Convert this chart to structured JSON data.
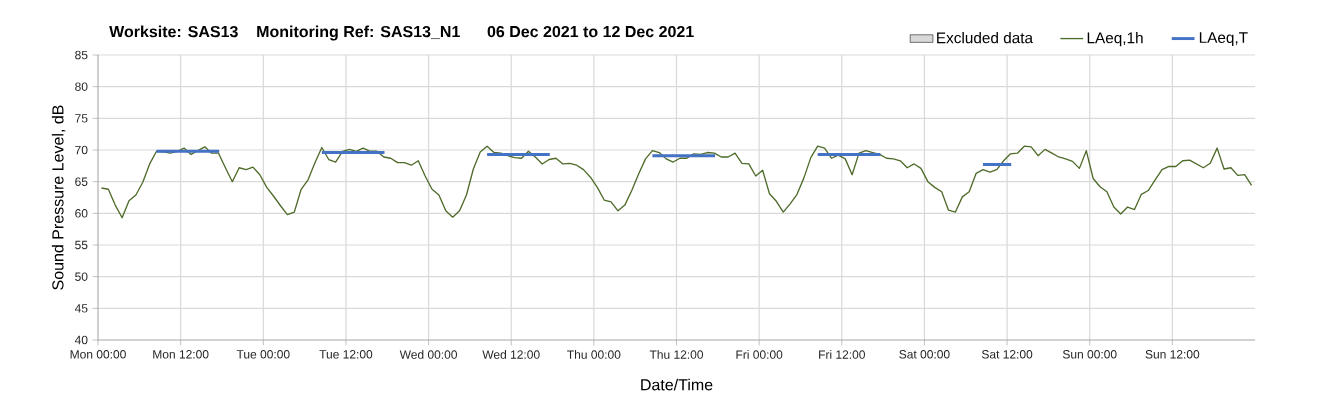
{
  "chart_data": {
    "type": "line",
    "title": "Worksite: SAS13    Monitoring Ref: SAS13_N1      06 Dec 2021 to 12 Dec 2021",
    "xlabel": "Date/Time",
    "ylabel": "Sound Pressure Level, dB",
    "x": [
      "2021-12-06T00:30",
      "2021-12-06T01:30",
      "2021-12-06T02:30",
      "2021-12-06T03:30",
      "2021-12-06T04:30",
      "2021-12-06T05:30",
      "2021-12-06T06:30",
      "2021-12-06T07:30",
      "2021-12-06T08:30",
      "2021-12-06T09:30",
      "2021-12-06T10:30",
      "2021-12-06T11:30",
      "2021-12-06T12:30",
      "2021-12-06T13:30",
      "2021-12-06T14:30",
      "2021-12-06T15:30",
      "2021-12-06T16:30",
      "2021-12-06T17:30",
      "2021-12-06T18:30",
      "2021-12-06T19:30",
      "2021-12-06T20:30",
      "2021-12-06T21:30",
      "2021-12-06T22:30",
      "2021-12-06T23:30",
      "2021-12-07T00:30",
      "2021-12-07T01:30",
      "2021-12-07T02:30",
      "2021-12-07T03:30",
      "2021-12-07T04:30",
      "2021-12-07T05:30",
      "2021-12-07T06:30",
      "2021-12-07T07:30",
      "2021-12-07T08:30",
      "2021-12-07T09:30",
      "2021-12-07T10:30",
      "2021-12-07T11:30",
      "2021-12-07T12:30",
      "2021-12-07T13:30",
      "2021-12-07T14:30",
      "2021-12-07T15:30",
      "2021-12-07T16:30",
      "2021-12-07T17:30",
      "2021-12-07T18:30",
      "2021-12-07T19:30",
      "2021-12-07T20:30",
      "2021-12-07T21:30",
      "2021-12-07T22:30",
      "2021-12-07T23:30",
      "2021-12-08T00:30",
      "2021-12-08T01:30",
      "2021-12-08T02:30",
      "2021-12-08T03:30",
      "2021-12-08T04:30",
      "2021-12-08T05:30",
      "2021-12-08T06:30",
      "2021-12-08T07:30",
      "2021-12-08T08:30",
      "2021-12-08T09:30",
      "2021-12-08T10:30",
      "2021-12-08T11:30",
      "2021-12-08T12:30",
      "2021-12-08T13:30",
      "2021-12-08T14:30",
      "2021-12-08T15:30",
      "2021-12-08T16:30",
      "2021-12-08T17:30",
      "2021-12-08T18:30",
      "2021-12-08T19:30",
      "2021-12-08T20:30",
      "2021-12-08T21:30",
      "2021-12-08T22:30",
      "2021-12-08T23:30",
      "2021-12-09T00:30",
      "2021-12-09T01:30",
      "2021-12-09T02:30",
      "2021-12-09T03:30",
      "2021-12-09T04:30",
      "2021-12-09T05:30",
      "2021-12-09T06:30",
      "2021-12-09T07:30",
      "2021-12-09T08:30",
      "2021-12-09T09:30",
      "2021-12-09T10:30",
      "2021-12-09T11:30",
      "2021-12-09T12:30",
      "2021-12-09T13:30",
      "2021-12-09T14:30",
      "2021-12-09T15:30",
      "2021-12-09T16:30",
      "2021-12-09T17:30",
      "2021-12-09T18:30",
      "2021-12-09T19:30",
      "2021-12-09T20:30",
      "2021-12-09T21:30",
      "2021-12-09T22:30",
      "2021-12-09T23:30",
      "2021-12-10T00:30",
      "2021-12-10T01:30",
      "2021-12-10T02:30",
      "2021-12-10T03:30",
      "2021-12-10T04:30",
      "2021-12-10T05:30",
      "2021-12-10T06:30",
      "2021-12-10T07:30",
      "2021-12-10T08:30",
      "2021-12-10T09:30",
      "2021-12-10T10:30",
      "2021-12-10T11:30",
      "2021-12-10T12:30",
      "2021-12-10T13:30",
      "2021-12-10T14:30",
      "2021-12-10T15:30",
      "2021-12-10T16:30",
      "2021-12-10T17:30",
      "2021-12-10T18:30",
      "2021-12-10T19:30",
      "2021-12-10T20:30",
      "2021-12-10T21:30",
      "2021-12-10T22:30",
      "2021-12-10T23:30",
      "2021-12-11T00:30",
      "2021-12-11T01:30",
      "2021-12-11T02:30",
      "2021-12-11T03:30",
      "2021-12-11T04:30",
      "2021-12-11T05:30",
      "2021-12-11T06:30",
      "2021-12-11T07:30",
      "2021-12-11T08:30",
      "2021-12-11T09:30",
      "2021-12-11T10:30",
      "2021-12-11T11:30",
      "2021-12-11T12:30",
      "2021-12-11T13:30",
      "2021-12-11T14:30",
      "2021-12-11T15:30",
      "2021-12-11T16:30",
      "2021-12-11T17:30",
      "2021-12-11T18:30",
      "2021-12-11T19:30",
      "2021-12-11T20:30",
      "2021-12-11T21:30",
      "2021-12-11T22:30",
      "2021-12-11T23:30",
      "2021-12-12T00:30",
      "2021-12-12T01:30",
      "2021-12-12T02:30",
      "2021-12-12T03:30",
      "2021-12-12T04:30",
      "2021-12-12T05:30",
      "2021-12-12T06:30",
      "2021-12-12T07:30",
      "2021-12-12T08:30",
      "2021-12-12T09:30",
      "2021-12-12T10:30",
      "2021-12-12T11:30",
      "2021-12-12T12:30",
      "2021-12-12T13:30",
      "2021-12-12T14:30",
      "2021-12-12T15:30",
      "2021-12-12T16:30",
      "2021-12-12T17:30",
      "2021-12-12T18:30",
      "2021-12-12T19:30",
      "2021-12-12T20:30",
      "2021-12-12T21:30",
      "2021-12-12T22:30",
      "2021-12-12T23:30"
    ],
    "series": [
      {
        "name": "Excluded data",
        "type": "area",
        "color": "#d9d9d9",
        "values": [
          null,
          null,
          null,
          null,
          null,
          null,
          null,
          null,
          null,
          null,
          null,
          null,
          null,
          null,
          null,
          null,
          null,
          null,
          null,
          null,
          null,
          null,
          null,
          null,
          null,
          null,
          null,
          null,
          null,
          null,
          null,
          null,
          null,
          null,
          null,
          null,
          null,
          null,
          null,
          null,
          null,
          null,
          null,
          null,
          null,
          null,
          null,
          null,
          null,
          null,
          null,
          null,
          null,
          null,
          null,
          null,
          null,
          null,
          null,
          null,
          null,
          null,
          null,
          null,
          null,
          null,
          null,
          null,
          null,
          null,
          null,
          null,
          null,
          null,
          null,
          null,
          null,
          null,
          null,
          null,
          null,
          null,
          null,
          null,
          null,
          null,
          null,
          null,
          null,
          null,
          null,
          null,
          null,
          null,
          null,
          null,
          null,
          null,
          null,
          null,
          null,
          null,
          null,
          null,
          null,
          null,
          null,
          null,
          null,
          null,
          null,
          null,
          null,
          null,
          null,
          null,
          null,
          null,
          null,
          null,
          null,
          null,
          null,
          null,
          null,
          null,
          null,
          null,
          null,
          null,
          null,
          null,
          null,
          null,
          null,
          null,
          null,
          null,
          null,
          null,
          null,
          null,
          null,
          null,
          null,
          null,
          null,
          null,
          null,
          null,
          null,
          null,
          null,
          null,
          null,
          null,
          null,
          null,
          null,
          null,
          null,
          null,
          null,
          null,
          null,
          null,
          null,
          null
        ]
      },
      {
        "name": "LAeq,1h",
        "color": "#4f6b2a",
        "values": [
          64.0,
          63.8,
          61.3,
          59.3,
          62.0,
          62.9,
          64.9,
          67.8,
          69.8,
          69.7,
          69.5,
          69.8,
          70.3,
          69.3,
          69.9,
          70.5,
          69.5,
          69.5,
          67.2,
          65.0,
          67.2,
          66.9,
          67.3,
          66.1,
          64.1,
          62.7,
          61.2,
          59.8,
          60.2,
          63.8,
          65.3,
          68.0,
          70.4,
          68.5,
          68.1,
          69.8,
          70.1,
          69.8,
          70.3,
          69.8,
          69.8,
          68.9,
          68.7,
          68.0,
          68.0,
          67.6,
          68.3,
          65.9,
          63.8,
          62.9,
          60.4,
          59.4,
          60.4,
          62.9,
          67.0,
          69.7,
          70.6,
          69.6,
          69.5,
          69.1,
          68.8,
          68.7,
          69.8,
          68.9,
          67.8,
          68.5,
          68.7,
          67.8,
          67.9,
          67.6,
          66.9,
          65.7,
          64.1,
          62.1,
          61.8,
          60.4,
          61.3,
          63.6,
          66.2,
          68.6,
          69.9,
          69.6,
          68.6,
          68.1,
          68.7,
          68.7,
          69.4,
          69.3,
          69.6,
          69.5,
          68.9,
          68.9,
          69.5,
          67.9,
          67.8,
          65.9,
          66.8,
          63.1,
          61.9,
          60.2,
          61.5,
          63.0,
          65.6,
          68.8,
          70.6,
          70.3,
          68.7,
          69.2,
          68.6,
          66.1,
          69.5,
          69.9,
          69.6,
          69.3,
          68.7,
          68.6,
          68.3,
          67.2,
          67.8,
          67.1,
          65.0,
          64.1,
          63.4,
          60.5,
          60.2,
          62.6,
          63.4,
          66.3,
          66.9,
          66.5,
          66.9,
          68.3,
          69.4,
          69.5,
          70.6,
          70.5,
          69.1,
          70.1,
          69.5,
          68.9,
          68.6,
          68.2,
          67.1,
          69.9,
          65.5,
          64.2,
          63.4,
          61.0,
          59.9,
          61.0,
          60.6,
          63.0,
          63.6,
          65.3,
          66.9,
          67.4,
          67.4,
          68.3,
          68.4,
          67.8,
          67.2,
          67.9,
          70.3,
          67.0,
          67.2,
          66.0,
          66.1,
          64.4
        ]
      },
      {
        "name": "LAeq,T",
        "color": "#4472c4",
        "x": [
          "2021-12-06T08:30",
          "2021-12-06T17:36",
          "2021-12-06T18:00",
          "2021-12-07T08:30",
          "2021-12-07T17:36",
          "2021-12-07T18:00",
          "2021-12-08T08:30",
          "2021-12-08T17:36",
          "2021-12-08T18:00",
          "2021-12-09T08:30",
          "2021-12-09T17:36",
          "2021-12-09T18:00",
          "2021-12-10T08:30",
          "2021-12-10T17:36",
          "2021-12-10T18:00",
          "2021-12-11T08:30",
          "2021-12-11T12:36"
        ],
        "values": [
          69.8,
          69.8,
          null,
          69.6,
          69.6,
          null,
          69.3,
          69.3,
          null,
          69.1,
          69.1,
          null,
          69.3,
          69.3,
          null,
          67.7,
          67.7
        ]
      }
    ],
    "xlim": [
      "2021-12-06T00:00",
      "2021-12-13T00:00"
    ],
    "xticks": [
      {
        "value": "2021-12-06T00:00",
        "label": "Mon 00:00"
      },
      {
        "value": "2021-12-06T12:00",
        "label": "Mon 12:00"
      },
      {
        "value": "2021-12-07T00:00",
        "label": "Tue 00:00"
      },
      {
        "value": "2021-12-07T12:00",
        "label": "Tue 12:00"
      },
      {
        "value": "2021-12-08T00:00",
        "label": "Wed 00:00"
      },
      {
        "value": "2021-12-08T12:00",
        "label": "Wed 12:00"
      },
      {
        "value": "2021-12-09T00:00",
        "label": "Thu 00:00"
      },
      {
        "value": "2021-12-09T12:00",
        "label": "Thu 12:00"
      },
      {
        "value": "2021-12-10T00:00",
        "label": "Fri 00:00"
      },
      {
        "value": "2021-12-10T12:00",
        "label": "Fri 12:00"
      },
      {
        "value": "2021-12-11T00:00",
        "label": "Sat 00:00"
      },
      {
        "value": "2021-12-11T12:00",
        "label": "Sat 12:00"
      },
      {
        "value": "2021-12-12T00:00",
        "label": "Sun 00:00"
      },
      {
        "value": "2021-12-12T12:00",
        "label": "Sun 12:00"
      }
    ],
    "ylim": [
      40,
      85
    ],
    "yticks": [
      40,
      45,
      50,
      55,
      60,
      65,
      70,
      75,
      80,
      85
    ],
    "grid": true,
    "legend": "top right"
  }
}
